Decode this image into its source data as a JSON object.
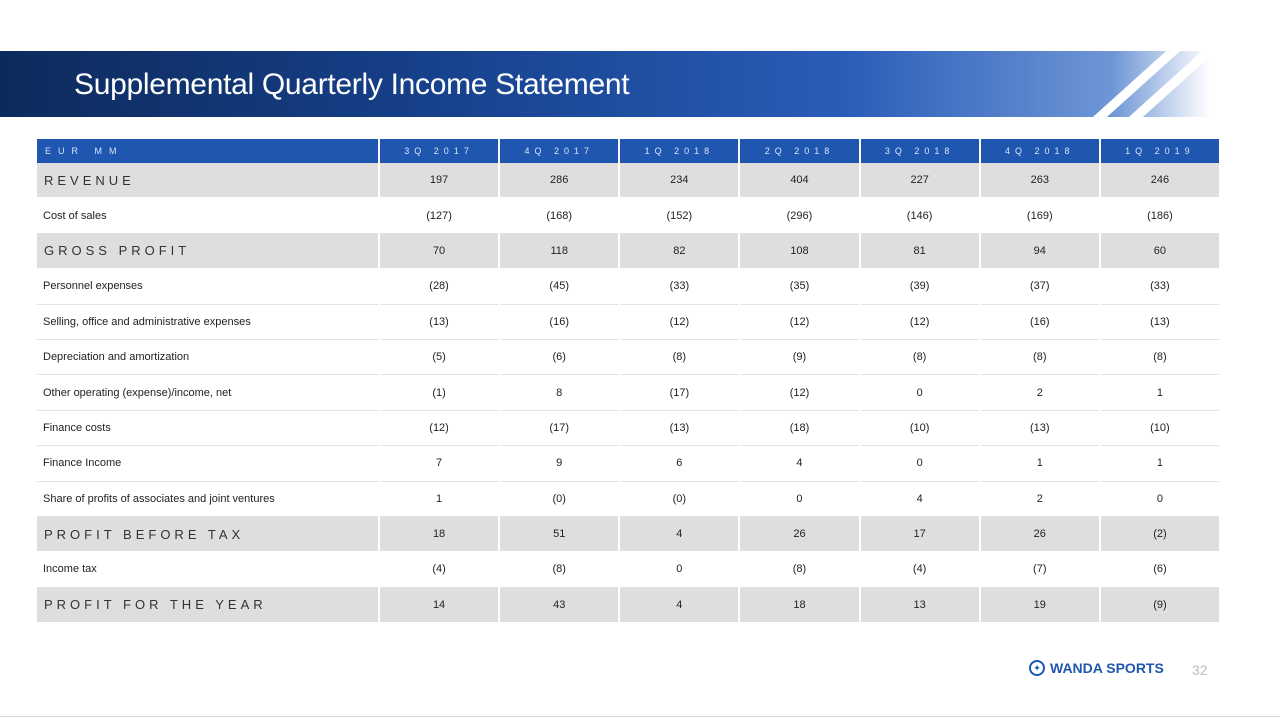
{
  "slide": {
    "title": "Supplemental Quarterly Income Statement",
    "page_number": "32",
    "brand": "WANDA SPORTS",
    "accent_color": "#1f56b0"
  },
  "table": {
    "columns": [
      "EUR MM",
      "3Q 2017",
      "4Q 2017",
      "1Q 2018",
      "2Q 2018",
      "3Q 2018",
      "4Q 2018",
      "1Q 2019"
    ],
    "rows": [
      {
        "label": "REVENUE",
        "bold": true,
        "values": [
          "197",
          "286",
          "234",
          "404",
          "227",
          "263",
          "246"
        ]
      },
      {
        "label": "Cost of sales",
        "bold": false,
        "values": [
          "(127)",
          "(168)",
          "(152)",
          "(296)",
          "(146)",
          "(169)",
          "(186)"
        ]
      },
      {
        "label": "GROSS PROFIT",
        "bold": true,
        "values": [
          "70",
          "118",
          "82",
          "108",
          "81",
          "94",
          "60"
        ]
      },
      {
        "label": "Personnel expenses",
        "bold": false,
        "values": [
          "(28)",
          "(45)",
          "(33)",
          "(35)",
          "(39)",
          "(37)",
          "(33)"
        ]
      },
      {
        "label": "Selling, office and administrative expenses",
        "bold": false,
        "values": [
          "(13)",
          "(16)",
          "(12)",
          "(12)",
          "(12)",
          "(16)",
          "(13)"
        ]
      },
      {
        "label": "Depreciation and amortization",
        "bold": false,
        "values": [
          "(5)",
          "(6)",
          "(8)",
          "(9)",
          "(8)",
          "(8)",
          "(8)"
        ]
      },
      {
        "label": "Other operating (expense)/income, net",
        "bold": false,
        "values": [
          "(1)",
          "8",
          "(17)",
          "(12)",
          "0",
          "2",
          "1"
        ]
      },
      {
        "label": "Finance costs",
        "bold": false,
        "values": [
          "(12)",
          "(17)",
          "(13)",
          "(18)",
          "(10)",
          "(13)",
          "(10)"
        ]
      },
      {
        "label": "Finance Income",
        "bold": false,
        "values": [
          "7",
          "9",
          "6",
          "4",
          "0",
          "1",
          "1"
        ]
      },
      {
        "label": "Share of profits of associates and joint ventures",
        "bold": false,
        "values": [
          "1",
          "(0)",
          "(0)",
          "0",
          "4",
          "2",
          "0"
        ]
      },
      {
        "label": "PROFIT BEFORE TAX",
        "bold": true,
        "values": [
          "18",
          "51",
          "4",
          "26",
          "17",
          "26",
          "(2)"
        ]
      },
      {
        "label": "Income tax",
        "bold": false,
        "values": [
          "(4)",
          "(8)",
          "0",
          "(8)",
          "(4)",
          "(7)",
          "(6)"
        ]
      },
      {
        "label": "PROFIT FOR THE YEAR",
        "bold": true,
        "values": [
          "14",
          "43",
          "4",
          "18",
          "13",
          "19",
          "(9)"
        ]
      }
    ]
  }
}
